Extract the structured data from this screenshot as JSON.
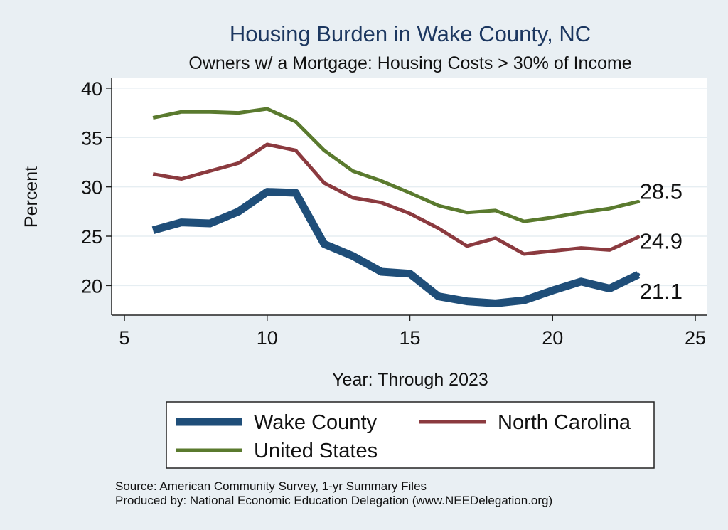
{
  "chart_data": {
    "type": "line",
    "title": "Housing Burden in Wake County, NC",
    "subtitle": "Owners w/ a Mortgage: Housing Costs > 30% of Income",
    "xlabel": "Year: Through 2023",
    "ylabel": "Percent",
    "xlim": [
      5,
      25
    ],
    "ylim": [
      17,
      41
    ],
    "xticks": [
      5,
      10,
      15,
      20,
      25
    ],
    "yticks": [
      20,
      25,
      30,
      35,
      40
    ],
    "grid": true,
    "x": [
      6,
      7,
      8,
      9,
      10,
      11,
      12,
      13,
      14,
      15,
      16,
      17,
      18,
      19,
      20,
      21,
      22,
      23
    ],
    "series": [
      {
        "name": "Wake County",
        "color": "#1f4e79",
        "values": [
          25.6,
          26.4,
          26.3,
          27.5,
          29.5,
          29.4,
          24.2,
          23.0,
          21.4,
          21.2,
          18.9,
          18.4,
          18.2,
          18.5,
          19.5,
          20.4,
          19.7,
          21.1
        ],
        "end_label": "21.1"
      },
      {
        "name": "North Carolina",
        "color": "#8b3a3f",
        "values": [
          31.3,
          30.8,
          31.6,
          32.4,
          34.3,
          33.7,
          30.4,
          28.9,
          28.4,
          27.3,
          25.8,
          24.0,
          24.8,
          23.2,
          23.5,
          23.8,
          23.6,
          24.9
        ],
        "end_label": "24.9"
      },
      {
        "name": "United States",
        "color": "#5a7a2e",
        "values": [
          37.0,
          37.6,
          37.6,
          37.5,
          37.9,
          36.6,
          33.7,
          31.6,
          30.6,
          29.4,
          28.1,
          27.4,
          27.6,
          26.5,
          26.9,
          27.4,
          27.8,
          28.5
        ],
        "end_label": "28.5"
      }
    ],
    "legend_position": "bottom"
  },
  "footer": {
    "source": "Source: American Community Survey, 1-yr Summary Files",
    "produced_by": "Produced by: National Economic Education Delegation (www.NEEDelegation.org)"
  },
  "colors": {
    "background": "#e9eff3",
    "plot_background": "#ffffff",
    "grid": "#e6eef2",
    "title": "#1c3760"
  }
}
